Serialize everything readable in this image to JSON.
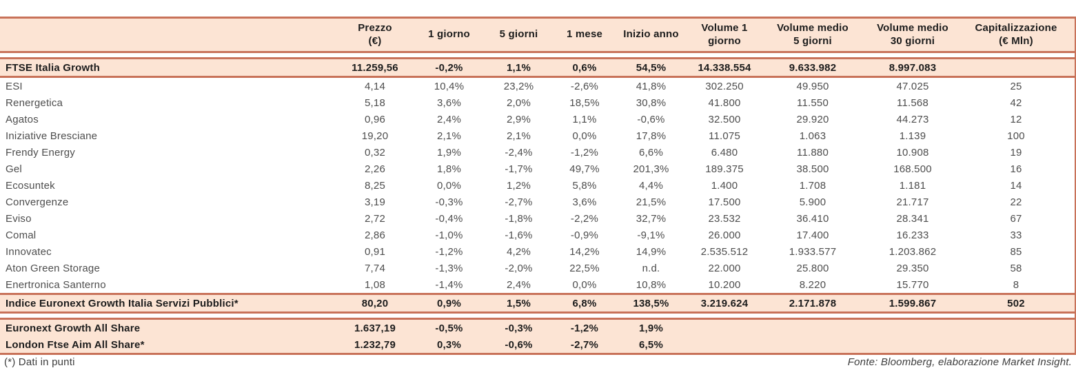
{
  "colors": {
    "peach": "#fce4d4",
    "border": "#c87259"
  },
  "table": {
    "headers": {
      "name": "",
      "values": [
        "Prezzo\n(€)",
        "1 giorno",
        "5 giorni",
        "1 mese",
        "Inizio anno",
        "Volume 1\ngiorno",
        "Volume medio\n5 giorni",
        "Volume medio\n30 giorni",
        "Capitalizzazione\n(€ Mln)"
      ]
    },
    "index_row": {
      "name": "FTSE Italia Growth",
      "values": [
        "11.259,56",
        "-0,2%",
        "1,1%",
        "0,6%",
        "54,5%",
        "14.338.554",
        "9.633.982",
        "8.997.083",
        ""
      ]
    },
    "rows": [
      {
        "name": "ESI",
        "values": [
          "4,14",
          "10,4%",
          "23,2%",
          "-2,6%",
          "41,8%",
          "302.250",
          "49.950",
          "47.025",
          "25"
        ]
      },
      {
        "name": "Renergetica",
        "values": [
          "5,18",
          "3,6%",
          "2,0%",
          "18,5%",
          "30,8%",
          "41.800",
          "11.550",
          "11.568",
          "42"
        ]
      },
      {
        "name": "Agatos",
        "values": [
          "0,96",
          "2,4%",
          "2,9%",
          "1,1%",
          "-0,6%",
          "32.500",
          "29.920",
          "44.273",
          "12"
        ]
      },
      {
        "name": "Iniziative Bresciane",
        "values": [
          "19,20",
          "2,1%",
          "2,1%",
          "0,0%",
          "17,8%",
          "11.075",
          "1.063",
          "1.139",
          "100"
        ]
      },
      {
        "name": "Frendy Energy",
        "values": [
          "0,32",
          "1,9%",
          "-2,4%",
          "-1,2%",
          "6,6%",
          "6.480",
          "11.880",
          "10.908",
          "19"
        ]
      },
      {
        "name": "Gel",
        "values": [
          "2,26",
          "1,8%",
          "-1,7%",
          "49,7%",
          "201,3%",
          "189.375",
          "38.500",
          "168.500",
          "16"
        ]
      },
      {
        "name": "Ecosuntek",
        "values": [
          "8,25",
          "0,0%",
          "1,2%",
          "5,8%",
          "4,4%",
          "1.400",
          "1.708",
          "1.181",
          "14"
        ]
      },
      {
        "name": "Convergenze",
        "values": [
          "3,19",
          "-0,3%",
          "-2,7%",
          "3,6%",
          "21,5%",
          "17.500",
          "5.900",
          "21.717",
          "22"
        ]
      },
      {
        "name": "Eviso",
        "values": [
          "2,72",
          "-0,4%",
          "-1,8%",
          "-2,2%",
          "32,7%",
          "23.532",
          "36.410",
          "28.341",
          "67"
        ]
      },
      {
        "name": "Comal",
        "values": [
          "2,86",
          "-1,0%",
          "-1,6%",
          "-0,9%",
          "-9,1%",
          "26.000",
          "17.400",
          "16.233",
          "33"
        ]
      },
      {
        "name": "Innovatec",
        "values": [
          "0,91",
          "-1,2%",
          "4,2%",
          "14,2%",
          "14,9%",
          "2.535.512",
          "1.933.577",
          "1.203.862",
          "85"
        ]
      },
      {
        "name": "Aton Green Storage",
        "values": [
          "7,74",
          "-1,3%",
          "-2,0%",
          "22,5%",
          "n.d.",
          "22.000",
          "25.800",
          "29.350",
          "58"
        ]
      },
      {
        "name": "Enertronica Santerno",
        "values": [
          "1,08",
          "-1,4%",
          "2,4%",
          "0,0%",
          "10,8%",
          "10.200",
          "8.220",
          "15.770",
          "8"
        ]
      }
    ],
    "sector_index_row": {
      "name": "Indice Euronext Growth Italia Servizi Pubblici*",
      "values": [
        "80,20",
        "0,9%",
        "1,5%",
        "6,8%",
        "138,5%",
        "3.219.624",
        "2.171.878",
        "1.599.867",
        "502"
      ]
    },
    "benchmark_rows": [
      {
        "name": "Euronext Growth All Share",
        "values": [
          "1.637,19",
          "-0,5%",
          "-0,3%",
          "-1,2%",
          "1,9%",
          "",
          "",
          "",
          ""
        ]
      },
      {
        "name": "London Ftse Aim All Share*",
        "values": [
          "1.232,79",
          "0,3%",
          "-0,6%",
          "-2,7%",
          "6,5%",
          "",
          "",
          "",
          ""
        ]
      }
    ],
    "footnote": "(*) Dati in punti",
    "source": "Fonte: Bloomberg, elaborazione Market Insight."
  }
}
